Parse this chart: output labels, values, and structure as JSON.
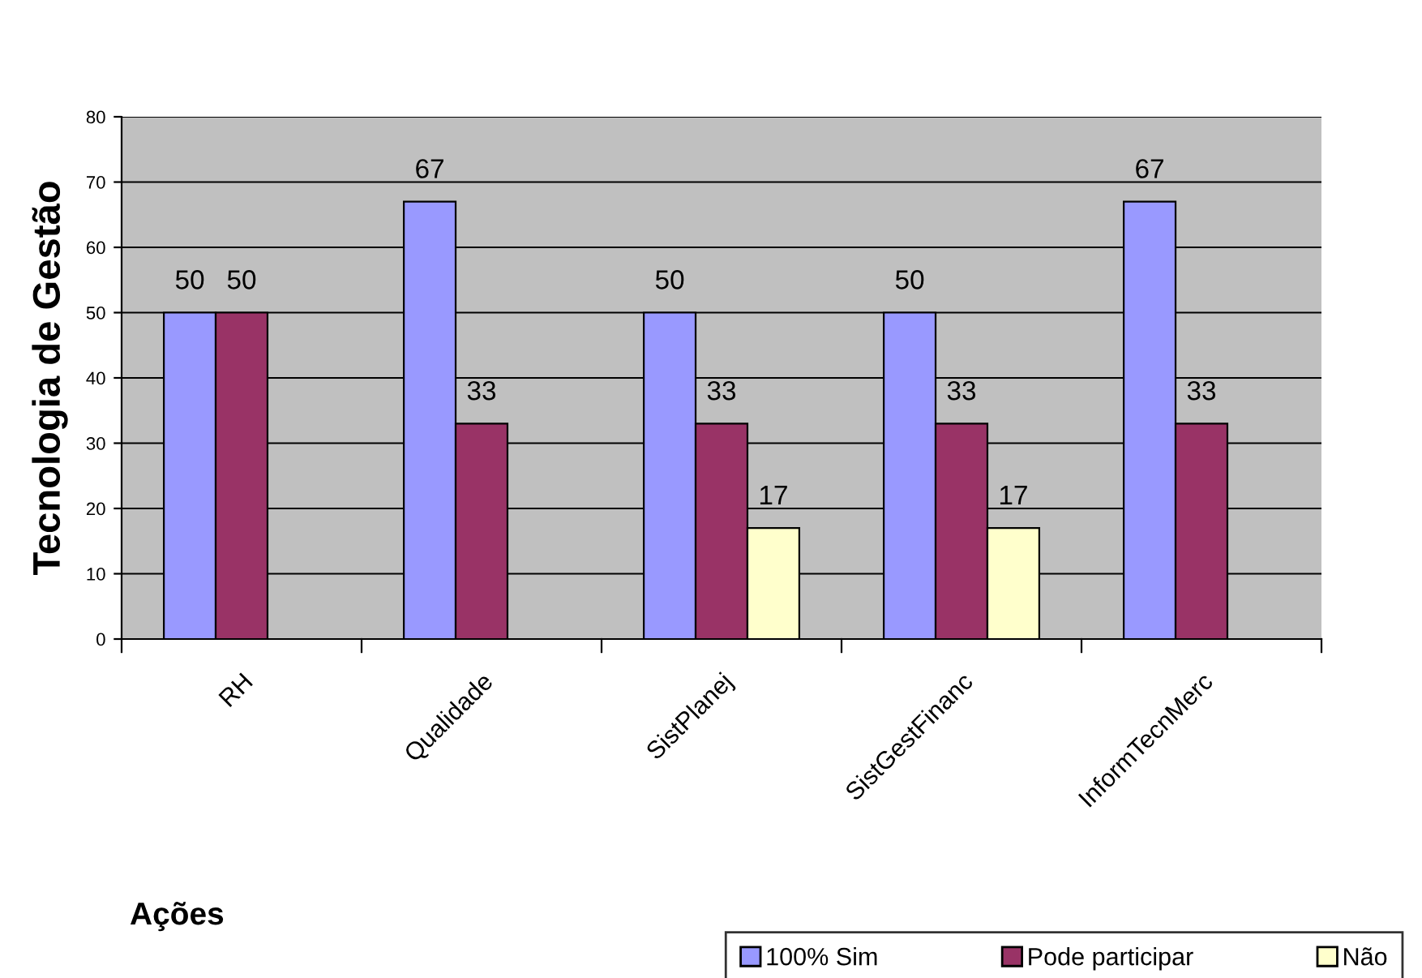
{
  "chart_data": {
    "type": "bar",
    "ylabel": "Tecnologia de Gestão",
    "xlabel": "Ações",
    "categories": [
      "RH",
      "Qualidade",
      "SistPlanej",
      "SistGestFinanc",
      "InformTecnMerc"
    ],
    "series": [
      {
        "name": "100% Sim",
        "color": "#9999ff",
        "values": [
          50,
          67,
          50,
          50,
          67
        ]
      },
      {
        "name": "Pode participar",
        "color": "#993366",
        "values": [
          50,
          33,
          33,
          33,
          33
        ]
      },
      {
        "name": "Não",
        "color": "#ffffcc",
        "values": [
          null,
          null,
          17,
          17,
          null
        ]
      }
    ],
    "ylim": [
      0,
      80
    ],
    "yticks": [
      0,
      10,
      20,
      30,
      40,
      50,
      60,
      70,
      80
    ],
    "grid": "y",
    "data_labels": true,
    "legend": "bottom right"
  }
}
